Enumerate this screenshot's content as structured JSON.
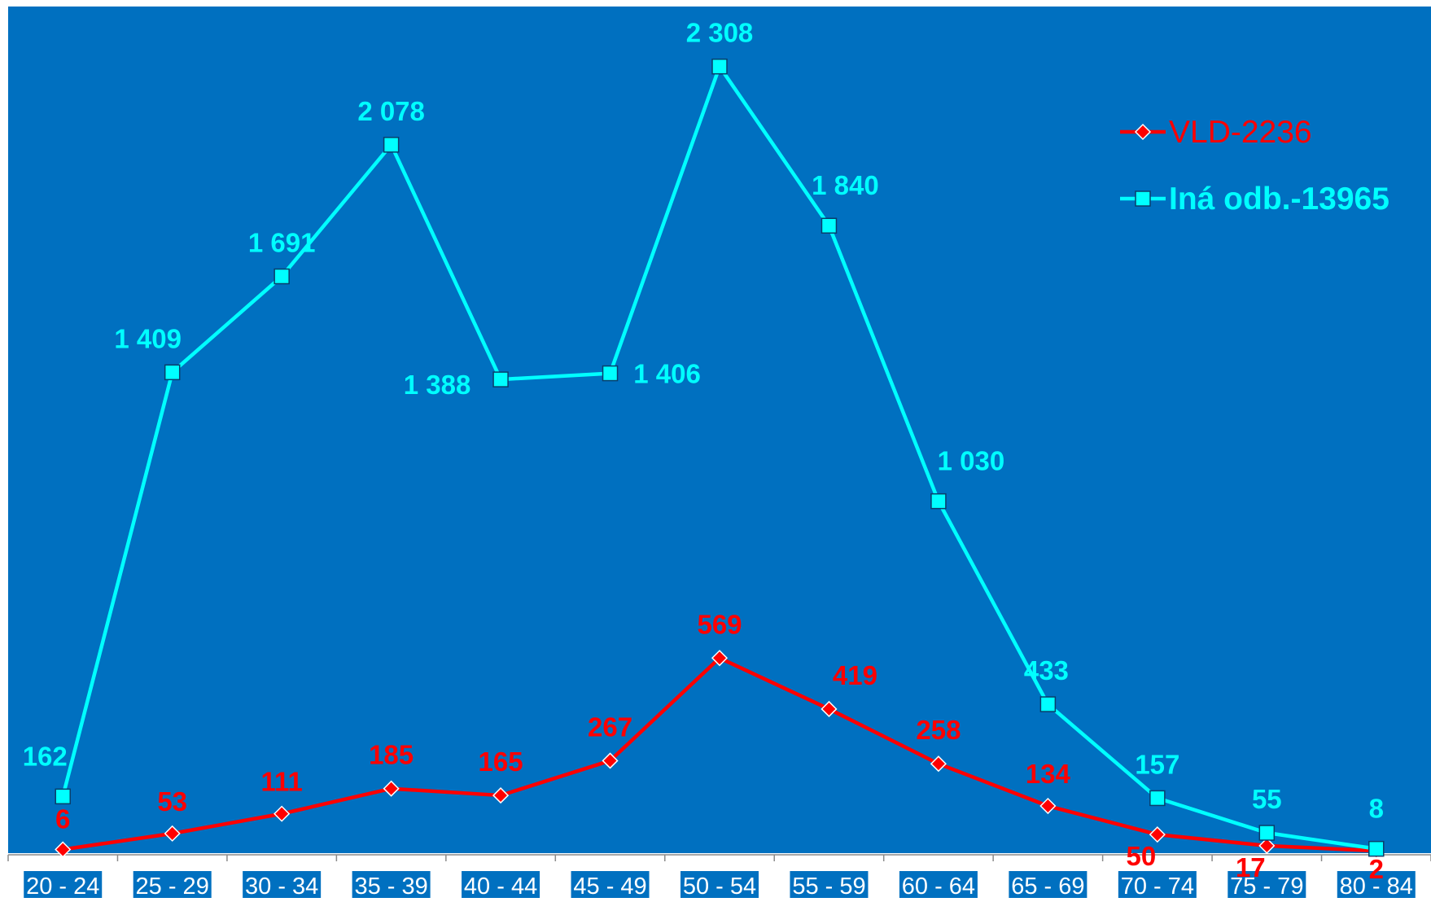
{
  "chart_data": {
    "type": "line",
    "title": "",
    "xlabel": "",
    "ylabel": "",
    "ylim": [
      0,
      2500
    ],
    "grid": false,
    "legend_position": "top-right",
    "background_color": "#0070C0",
    "categories": [
      "20 - 24",
      "25 - 29",
      "30 - 34",
      "35 - 39",
      "40 - 44",
      "45 - 49",
      "50 - 54",
      "55 - 59",
      "60 - 64",
      "65 - 69",
      "70 - 74",
      "75 - 79",
      "80 - 84"
    ],
    "series": [
      {
        "name": "VLD-2236",
        "color": "#FF0000",
        "marker": "diamond",
        "values": [
          6,
          53,
          111,
          185,
          165,
          267,
          569,
          419,
          258,
          134,
          50,
          17,
          2
        ],
        "labels": [
          "6",
          "53",
          "111",
          "185",
          "165",
          "267",
          "569",
          "419",
          "258",
          "134",
          "50",
          "17",
          "2"
        ]
      },
      {
        "name": "Iná odb.-13965",
        "color": "#00FFFF",
        "marker": "square",
        "values": [
          162,
          1409,
          1691,
          2078,
          1388,
          1406,
          2308,
          1840,
          1030,
          433,
          157,
          55,
          8
        ],
        "labels": [
          "162",
          "1 409",
          "1 691",
          "2 078",
          "1 388",
          "1 406",
          "2 308",
          "1 840",
          "1 030",
          "433",
          "157",
          "55",
          "8"
        ]
      }
    ]
  }
}
